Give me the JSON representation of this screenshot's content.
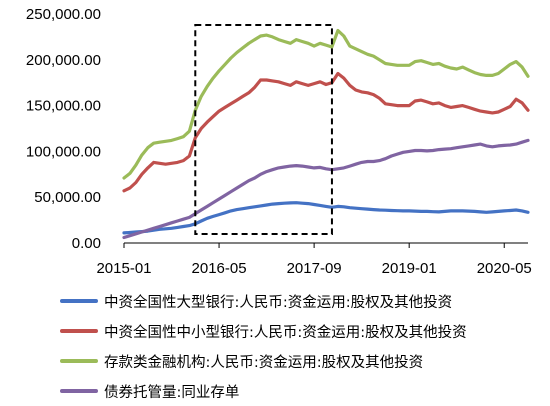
{
  "chart_data": {
    "type": "line",
    "title": "",
    "xlabel": "",
    "ylabel": "",
    "ylim": [
      0,
      250000
    ],
    "y_ticks": [
      "0.00",
      "50,000.00",
      "100,000.00",
      "150,000.00",
      "200,000.00",
      "250,000.00"
    ],
    "x_ticks": [
      "2015-01",
      "2016-05",
      "2017-09",
      "2019-01",
      "2020-05"
    ],
    "grid": false,
    "legend_position": "bottom",
    "highlight_box": {
      "x_from": "2016-01",
      "x_to": "2017-12"
    },
    "x": [
      "2015-01",
      "2015-02",
      "2015-03",
      "2015-04",
      "2015-05",
      "2015-06",
      "2015-07",
      "2015-08",
      "2015-09",
      "2015-10",
      "2015-11",
      "2015-12",
      "2016-01",
      "2016-02",
      "2016-03",
      "2016-04",
      "2016-05",
      "2016-06",
      "2016-07",
      "2016-08",
      "2016-09",
      "2016-10",
      "2016-11",
      "2016-12",
      "2017-01",
      "2017-02",
      "2017-03",
      "2017-04",
      "2017-05",
      "2017-06",
      "2017-07",
      "2017-08",
      "2017-09",
      "2017-10",
      "2017-11",
      "2017-12",
      "2018-01",
      "2018-02",
      "2018-03",
      "2018-04",
      "2018-05",
      "2018-06",
      "2018-07",
      "2018-08",
      "2018-09",
      "2018-10",
      "2018-11",
      "2018-12",
      "2019-01",
      "2019-02",
      "2019-03",
      "2019-04",
      "2019-05",
      "2019-06",
      "2019-07",
      "2019-08",
      "2019-09",
      "2019-10",
      "2019-11",
      "2019-12",
      "2020-01",
      "2020-02",
      "2020-03",
      "2020-04",
      "2020-05",
      "2020-06",
      "2020-07",
      "2020-08",
      "2020-09"
    ],
    "series": [
      {
        "name": "中资全国性大型银行:人民币:资金运用:股权及其他投资",
        "color": "#4472C4",
        "values": [
          11000,
          11500,
          12000,
          12500,
          13000,
          14000,
          15000,
          15500,
          16000,
          17000,
          18000,
          19000,
          21000,
          24000,
          27000,
          29000,
          31000,
          33000,
          35000,
          36500,
          37500,
          38500,
          39500,
          40500,
          41500,
          42500,
          43000,
          43500,
          43800,
          44000,
          43500,
          43000,
          42000,
          41000,
          40000,
          39000,
          40000,
          39500,
          38500,
          38000,
          37500,
          37000,
          36500,
          36000,
          35800,
          35500,
          35300,
          35000,
          35000,
          34800,
          34500,
          34500,
          34200,
          34000,
          34500,
          35000,
          35200,
          35000,
          34800,
          34500,
          34000,
          33500,
          34000,
          34500,
          35000,
          35500,
          36000,
          35000,
          33500
        ]
      },
      {
        "name": "中资全国性中小型银行:人民币:资金运用:股权及其他投资",
        "color": "#C0504D",
        "values": [
          57000,
          60000,
          66000,
          75000,
          82000,
          88000,
          87000,
          86000,
          87000,
          88000,
          90000,
          95000,
          115000,
          125000,
          132000,
          138000,
          144000,
          148000,
          152000,
          156000,
          160000,
          164000,
          170000,
          178000,
          178000,
          177000,
          176000,
          174000,
          172000,
          176000,
          174000,
          172000,
          174000,
          176000,
          173000,
          175000,
          185000,
          180000,
          172000,
          167000,
          165000,
          164000,
          162000,
          158000,
          152000,
          151000,
          150000,
          150000,
          150000,
          155000,
          156000,
          154000,
          152000,
          153000,
          150000,
          148000,
          149000,
          150000,
          148000,
          146000,
          144000,
          143000,
          142000,
          143000,
          146000,
          149000,
          157000,
          153000,
          145000
        ]
      },
      {
        "name": "存款类金融机构:人民币:资金运用:股权及其他投资",
        "color": "#9BBB59",
        "values": [
          71000,
          76000,
          85000,
          96000,
          104000,
          109000,
          110000,
          111000,
          112000,
          114000,
          116000,
          122000,
          145000,
          160000,
          171000,
          180000,
          188000,
          195000,
          202000,
          208000,
          213000,
          218000,
          222000,
          226000,
          227000,
          225000,
          222000,
          220000,
          218000,
          222000,
          220000,
          218000,
          215000,
          218000,
          216000,
          214000,
          232000,
          226000,
          215000,
          212000,
          209000,
          206000,
          204000,
          200000,
          196000,
          195000,
          194000,
          194000,
          194000,
          198000,
          199000,
          197000,
          195000,
          196000,
          193000,
          191000,
          190000,
          192000,
          189000,
          186000,
          184000,
          183000,
          183000,
          185000,
          190000,
          195000,
          198000,
          192000,
          182000
        ]
      },
      {
        "name": "债券托管量:同业存单",
        "color": "#8064A2",
        "values": [
          6000,
          8000,
          10000,
          12000,
          14000,
          16000,
          18000,
          20000,
          22000,
          24000,
          26000,
          28000,
          32000,
          36000,
          40000,
          44000,
          48000,
          52000,
          56000,
          60000,
          64000,
          68000,
          71000,
          75000,
          78000,
          80000,
          82000,
          83000,
          84000,
          84500,
          84000,
          83000,
          82000,
          82500,
          81000,
          80000,
          81000,
          82000,
          84000,
          86000,
          88000,
          89000,
          89000,
          90000,
          92000,
          95000,
          97000,
          99000,
          100000,
          101000,
          101000,
          100500,
          101000,
          102000,
          102500,
          103000,
          104000,
          105000,
          106000,
          107000,
          108000,
          106000,
          105000,
          106000,
          106500,
          107000,
          108000,
          110000,
          112000
        ]
      }
    ]
  }
}
